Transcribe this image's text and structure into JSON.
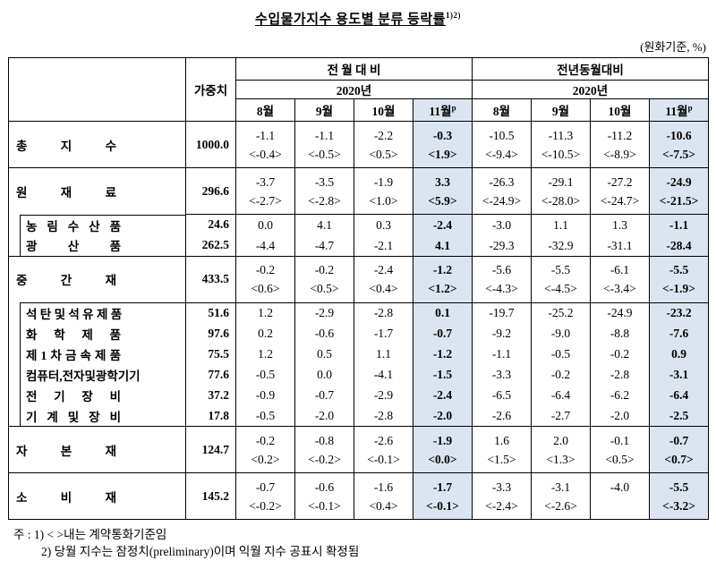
{
  "title": "수입물가지수 용도별 분류 등락률",
  "title_sup": "1)2)",
  "unit_note": "(원화기준, %)",
  "colors": {
    "highlight_column": "#dbe5f1"
  },
  "header": {
    "weight": "가중치",
    "mom": "전 월 대 비",
    "yoy": "전년동월대비",
    "year": "2020년",
    "months": [
      "8월",
      "9월",
      "10월",
      "11월"
    ],
    "month_sup": "p"
  },
  "rows": [
    {
      "name": "총 지 수",
      "level": "main",
      "group_start": true,
      "weight": "1000.0",
      "line1": [
        "-1.1",
        "-1.1",
        "-2.2",
        "-0.3",
        "-10.5",
        "-11.3",
        "-11.2",
        "-10.6"
      ],
      "line2": [
        "<-0.4>",
        "<-0.5>",
        "<0.5>",
        "<1.9>",
        "<-9.4>",
        "<-10.5>",
        "<-8.9>",
        "<-7.5>"
      ]
    },
    {
      "name": "원 재 료",
      "level": "main",
      "group_start": true,
      "weight": "296.6",
      "line1": [
        "-3.7",
        "-3.5",
        "-1.9",
        "3.3",
        "-26.3",
        "-29.1",
        "-27.2",
        "-24.9"
      ],
      "line2": [
        "<-2.7>",
        "<-2.8>",
        "<1.0>",
        "<5.9>",
        "<-24.9>",
        "<-28.0>",
        "<-24.7>",
        "<-21.5>"
      ]
    },
    {
      "name": "농 림 수 산 품",
      "level": "sub",
      "group_start": true,
      "weight": "24.6",
      "line1": [
        "0.0",
        "4.1",
        "0.3",
        "-2.4",
        "-3.0",
        "1.1",
        "1.3",
        "-1.1"
      ]
    },
    {
      "name": "광 산 품",
      "level": "sub",
      "group_start": false,
      "weight": "262.5",
      "line1": [
        "-4.4",
        "-4.7",
        "-2.1",
        "4.1",
        "-29.3",
        "-32.9",
        "-31.1",
        "-28.4"
      ]
    },
    {
      "name": "중 간 재",
      "level": "main",
      "group_start": true,
      "weight": "433.5",
      "line1": [
        "-0.2",
        "-0.2",
        "-2.4",
        "-1.2",
        "-5.6",
        "-5.5",
        "-6.1",
        "-5.5"
      ],
      "line2": [
        "<0.6>",
        "<0.5>",
        "<0.4>",
        "<1.2>",
        "<-4.3>",
        "<-4.5>",
        "<-3.4>",
        "<-1.9>"
      ]
    },
    {
      "name": "석 탄 및 석 유 제 품",
      "level": "sub",
      "group_start": true,
      "weight": "51.6",
      "line1": [
        "1.2",
        "-2.9",
        "-2.8",
        "0.1",
        "-19.7",
        "-25.2",
        "-24.9",
        "-23.2"
      ]
    },
    {
      "name": "화 학 제 품",
      "level": "sub",
      "group_start": false,
      "weight": "97.6",
      "line1": [
        "0.2",
        "-0.6",
        "-1.7",
        "-0.7",
        "-9.2",
        "-9.0",
        "-8.8",
        "-7.6"
      ]
    },
    {
      "name": "제 1 차 금 속 제 품",
      "level": "sub",
      "group_start": false,
      "weight": "75.5",
      "line1": [
        "1.2",
        "0.5",
        "1.1",
        "-1.2",
        "-1.1",
        "-0.5",
        "-0.2",
        "0.9"
      ]
    },
    {
      "name": "컴퓨터,전자및광학기기",
      "level": "sub",
      "group_start": false,
      "weight": "77.6",
      "line1": [
        "-0.5",
        "0.0",
        "-4.1",
        "-1.5",
        "-3.3",
        "-0.2",
        "-2.8",
        "-3.1"
      ]
    },
    {
      "name": "전 기 장 비",
      "level": "sub",
      "group_start": false,
      "weight": "37.2",
      "line1": [
        "-0.9",
        "-0.7",
        "-2.9",
        "-2.4",
        "-6.5",
        "-6.4",
        "-6.2",
        "-6.4"
      ]
    },
    {
      "name": "기 계 및 장 비",
      "level": "sub",
      "group_start": false,
      "weight": "17.8",
      "line1": [
        "-0.5",
        "-2.0",
        "-2.8",
        "-2.0",
        "-2.6",
        "-2.7",
        "-2.0",
        "-2.5"
      ]
    },
    {
      "name": "자 본 재",
      "level": "main",
      "group_start": true,
      "weight": "124.7",
      "line1": [
        "-0.2",
        "-0.8",
        "-2.6",
        "-1.9",
        "1.6",
        "2.0",
        "-0.1",
        "-0.7"
      ],
      "line2": [
        "<0.2>",
        "<-0.2>",
        "<-0.1>",
        "<0.0>",
        "<1.5>",
        "<1.3>",
        "<0.5>",
        "<0.7>"
      ]
    },
    {
      "name": "소 비 재",
      "level": "main",
      "group_start": true,
      "weight": "145.2",
      "line1": [
        "-0.7",
        "-0.6",
        "-1.6",
        "-1.7",
        "-3.3",
        "-3.1",
        "-4.0",
        "-5.5"
      ],
      "line2": [
        "<-0.2>",
        "<-0.1>",
        "<0.4>",
        "<-0.1>",
        "<-2.4>",
        "<-2.6>",
        "",
        "<-3.2>"
      ]
    }
  ],
  "notes": {
    "n1": "주 : 1) < >내는 계약통화기준임",
    "n2": "2) 당월 지수는 잠정치(preliminary)이며 익월 지수 공표시 확정됨"
  }
}
